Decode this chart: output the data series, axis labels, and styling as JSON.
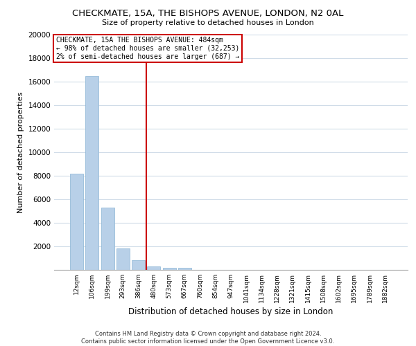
{
  "title": "CHECKMATE, 15A, THE BISHOPS AVENUE, LONDON, N2 0AL",
  "subtitle": "Size of property relative to detached houses in London",
  "xlabel": "Distribution of detached houses by size in London",
  "ylabel": "Number of detached properties",
  "bar_values": [
    8200,
    16500,
    5300,
    1800,
    800,
    300,
    200,
    150,
    0,
    0,
    0,
    0,
    0,
    0,
    0,
    0,
    0,
    0,
    0,
    0,
    0
  ],
  "bar_labels": [
    "12sqm",
    "106sqm",
    "199sqm",
    "293sqm",
    "386sqm",
    "480sqm",
    "573sqm",
    "667sqm",
    "760sqm",
    "854sqm",
    "947sqm",
    "1041sqm",
    "1134sqm",
    "1228sqm",
    "1321sqm",
    "1415sqm",
    "1508sqm",
    "1602sqm",
    "1695sqm",
    "1789sqm",
    "1882sqm"
  ],
  "bar_color": "#b8d0e8",
  "bar_edge_color": "#8ab4d4",
  "vline_x": 4.5,
  "vline_color": "#cc0000",
  "annotation_title": "CHECKMATE, 15A THE BISHOPS AVENUE: 484sqm",
  "annotation_line1": "← 98% of detached houses are smaller (32,253)",
  "annotation_line2": "2% of semi-detached houses are larger (687) →",
  "annotation_box_color": "#ffffff",
  "annotation_border_color": "#cc0000",
  "ylim": [
    0,
    20000
  ],
  "yticks": [
    0,
    2000,
    4000,
    6000,
    8000,
    10000,
    12000,
    14000,
    16000,
    18000,
    20000
  ],
  "footer_line1": "Contains HM Land Registry data © Crown copyright and database right 2024.",
  "footer_line2": "Contains public sector information licensed under the Open Government Licence v3.0.",
  "bg_color": "#ffffff",
  "grid_color": "#d0dce8"
}
